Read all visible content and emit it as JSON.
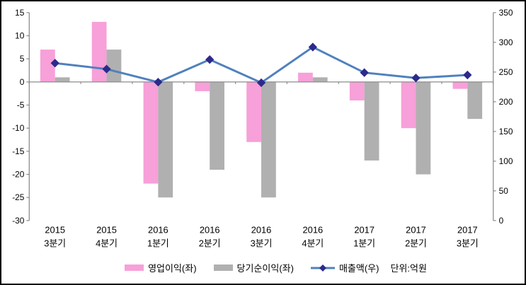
{
  "chart_data": {
    "type": "combo",
    "title": "",
    "grid": false,
    "legend_position": "bottom",
    "categories": [
      {
        "year": "2015",
        "quarter": "3분기"
      },
      {
        "year": "2015",
        "quarter": "4분기"
      },
      {
        "year": "2016",
        "quarter": "1분기"
      },
      {
        "year": "2016",
        "quarter": "2분기"
      },
      {
        "year": "2016",
        "quarter": "3분기"
      },
      {
        "year": "2016",
        "quarter": "4분기"
      },
      {
        "year": "2017",
        "quarter": "1분기"
      },
      {
        "year": "2017",
        "quarter": "2분기"
      },
      {
        "year": "2017",
        "quarter": "3분기"
      }
    ],
    "series": [
      {
        "key": "operating-profit",
        "name": "영업이익(좌)",
        "type": "bar",
        "axis": "left",
        "color": "#F7A0D9",
        "values": [
          7,
          13,
          -22,
          -2,
          -13,
          2,
          -4,
          -10,
          -1.5
        ]
      },
      {
        "key": "net-income",
        "name": "당기순이익(좌)",
        "type": "bar",
        "axis": "left",
        "color": "#B0B0B0",
        "values": [
          1,
          7,
          -25,
          -19,
          -25,
          1,
          -17,
          -20,
          -8
        ]
      },
      {
        "key": "revenue",
        "name": "매출액(우)",
        "unit_note": "단위:억원",
        "type": "line",
        "axis": "right",
        "color": "#4F81BD",
        "marker": "diamond",
        "marker_color": "#2C2A8C",
        "values": [
          265,
          255,
          233,
          271,
          232,
          292,
          249,
          240,
          245
        ]
      }
    ],
    "axes": {
      "left": {
        "min": -30,
        "max": 15,
        "ticks": [
          15,
          10,
          5,
          0,
          -5,
          -10,
          -15,
          -20,
          -25,
          -30
        ]
      },
      "right": {
        "min": 0,
        "max": 350,
        "ticks": [
          350,
          300,
          250,
          200,
          150,
          100,
          50,
          0
        ]
      }
    },
    "colors": {
      "axis_line": "#8C8C8C",
      "text": "#000000",
      "background": "#FFFFFF",
      "border": "#000000"
    }
  }
}
